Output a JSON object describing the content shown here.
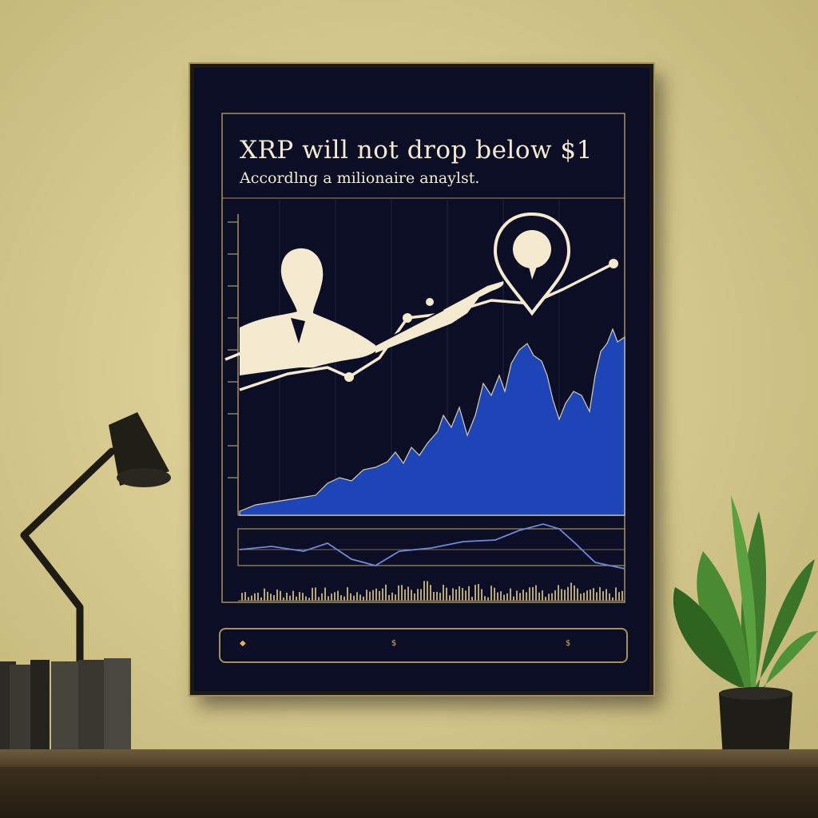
{
  "poster": {
    "title": "XRP will not drop below $1",
    "subtitle": "Accordlng a milionaire anaylst."
  },
  "stats": [
    {
      "icon": "location-pin-icon",
      "value": ""
    },
    {
      "icon": "dollar-sign-icon",
      "value": ""
    },
    {
      "icon": "dollar-sign-icon",
      "value": ""
    }
  ],
  "colors": {
    "wall": "#d6c98e",
    "poster_bg": "#0b0e24",
    "gold_accent": "#a8905a",
    "chart_blue": "#1e45b8",
    "text_cream": "#f3ead0"
  }
}
